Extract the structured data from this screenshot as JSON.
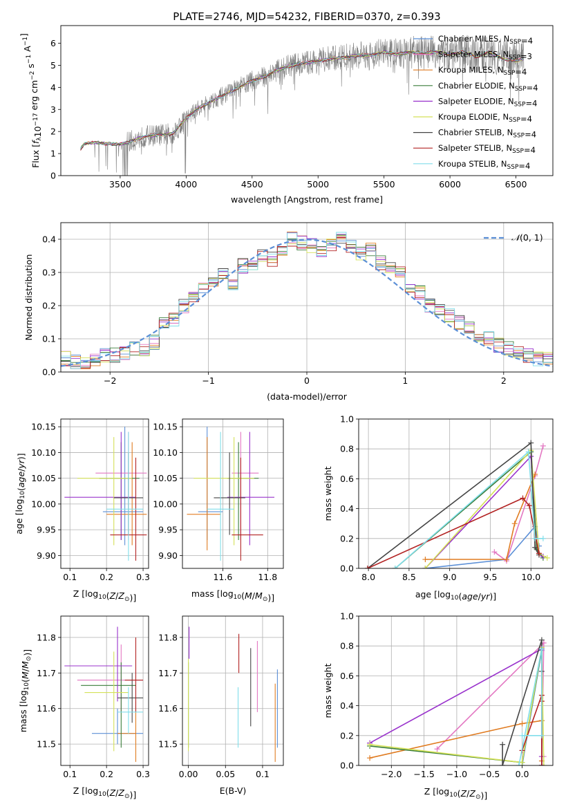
{
  "chart_data": [
    {
      "id": "spectrum",
      "type": "line",
      "title": "PLATE=2746, MJD=54232, FIBERID=0370, z=0.393",
      "xlabel": "wavelength [Angstrom, rest frame]",
      "ylabel": "Flux [f_λ 10^-17 erg cm^-2 s^-1 A^-1]",
      "xlim": [
        3050,
        6780
      ],
      "ylim": [
        0,
        6.8
      ],
      "xticks": [
        3500,
        4000,
        4500,
        5000,
        5500,
        6000,
        6500
      ],
      "yticks": [
        0,
        1,
        2,
        3,
        4,
        5,
        6
      ],
      "grid": false,
      "legend_position": "top-right",
      "series": [
        {
          "name": "Chabrier MILES, N_SSP=4",
          "color": "#5b8fd6"
        },
        {
          "name": "Salpeter MILES, N_SSP=3",
          "color": "#e377c2"
        },
        {
          "name": "Kroupa MILES, N_SSP=4",
          "color": "#e07b20"
        },
        {
          "name": "Chabrier ELODIE, N_SSP=4",
          "color": "#3a7d3a"
        },
        {
          "name": "Salpeter ELODIE, N_SSP=4",
          "color": "#9932cc"
        },
        {
          "name": "Kroupa ELODIE, N_SSP=4",
          "color": "#d4e157"
        },
        {
          "name": "Chabrier STELIB, N_SSP=4",
          "color": "#444444"
        },
        {
          "name": "Salpeter STELIB, N_SSP=4",
          "color": "#b22222"
        },
        {
          "name": "Kroupa STELIB, N_SSP=4",
          "color": "#80deea"
        }
      ],
      "data_color": "#808080",
      "envelope": {
        "x": [
          3200,
          3230,
          3300,
          3400,
          3500,
          3550,
          3600,
          3700,
          3800,
          3900,
          4000,
          4100,
          4200,
          4300,
          4400,
          4500,
          4600,
          4700,
          4800,
          4900,
          5000,
          5100,
          5200,
          5300,
          5400,
          5500,
          5600,
          5700,
          5800,
          5900,
          6000,
          6100,
          6200,
          6300,
          6400,
          6500,
          6560
        ],
        "y": [
          1.2,
          1.45,
          1.5,
          1.45,
          1.42,
          1.5,
          1.6,
          1.8,
          1.85,
          1.9,
          2.6,
          3.1,
          3.4,
          3.7,
          4.0,
          4.3,
          4.5,
          4.8,
          5.0,
          5.1,
          5.2,
          5.3,
          5.35,
          5.45,
          5.45,
          5.6,
          5.5,
          5.6,
          5.55,
          5.6,
          5.5,
          5.6,
          5.4,
          5.6,
          5.3,
          5.2,
          5.3
        ]
      }
    },
    {
      "id": "residuals",
      "type": "line",
      "xlabel": "(data-model)/error",
      "ylabel": "Normed distribution",
      "xlim": [
        -2.5,
        2.5
      ],
      "ylim": [
        0,
        0.45
      ],
      "xticks": [
        -2,
        -1,
        0,
        1,
        2
      ],
      "yticks": [
        0.0,
        0.1,
        0.2,
        0.3,
        0.4
      ],
      "grid": true,
      "legend_position": "top-right",
      "legend": [
        "N(0, 1)"
      ],
      "gaussian_color": "#5b8fd6",
      "bin_width": 0.1,
      "hist_centers": [
        -2.45,
        -2.35,
        -2.25,
        -2.15,
        -2.05,
        -1.95,
        -1.85,
        -1.75,
        -1.65,
        -1.55,
        -1.45,
        -1.35,
        -1.25,
        -1.15,
        -1.05,
        -0.95,
        -0.85,
        -0.75,
        -0.65,
        -0.55,
        -0.45,
        -0.35,
        -0.25,
        -0.15,
        -0.05,
        0.05,
        0.15,
        0.25,
        0.35,
        0.45,
        0.55,
        0.65,
        0.75,
        0.85,
        0.95,
        1.05,
        1.15,
        1.25,
        1.35,
        1.45,
        1.55,
        1.65,
        1.75,
        1.85,
        1.95,
        2.05,
        2.15,
        2.25,
        2.35,
        2.45
      ],
      "hist_base": [
        0.04,
        0.03,
        0.03,
        0.04,
        0.05,
        0.05,
        0.06,
        0.07,
        0.07,
        0.09,
        0.15,
        0.16,
        0.2,
        0.23,
        0.26,
        0.27,
        0.3,
        0.27,
        0.32,
        0.33,
        0.35,
        0.34,
        0.37,
        0.4,
        0.39,
        0.38,
        0.37,
        0.38,
        0.4,
        0.38,
        0.36,
        0.37,
        0.33,
        0.31,
        0.3,
        0.25,
        0.24,
        0.2,
        0.19,
        0.17,
        0.15,
        0.13,
        0.11,
        0.1,
        0.08,
        0.07,
        0.06,
        0.05,
        0.04,
        0.04
      ]
    },
    {
      "id": "age-vs-z",
      "type": "scatter",
      "xlabel": "Z [log10(Z/Z⊙)]",
      "ylabel": "age  [log10(age/yr)]",
      "xlim": [
        0.075,
        0.315
      ],
      "ylim": [
        9.875,
        10.165
      ],
      "xticks": [
        0.1,
        0.2,
        0.3
      ],
      "yticks": [
        9.9,
        9.95,
        10.0,
        10.05,
        10.1,
        10.15
      ],
      "grid": true,
      "points": [
        {
          "c": "#5b8fd6",
          "x": 0.25,
          "xerr": [
            0.19,
            0.3
          ],
          "y": 9.985,
          "yerr": [
            9.92,
            10.15
          ]
        },
        {
          "c": "#e377c2",
          "x": 0.26,
          "xerr": [
            0.17,
            0.31
          ],
          "y": 10.06,
          "yerr": [
            9.93,
            10.14
          ]
        },
        {
          "c": "#e07b20",
          "x": 0.27,
          "xerr": [
            0.2,
            0.31
          ],
          "y": 9.98,
          "yerr": [
            9.92,
            10.12
          ]
        },
        {
          "c": "#3a7d3a",
          "x": 0.24,
          "xerr": [
            0.18,
            0.29
          ],
          "y": 10.05,
          "yerr": [
            9.93,
            10.12
          ]
        },
        {
          "c": "#9932cc",
          "x": 0.24,
          "xerr": [
            0.085,
            0.28
          ],
          "y": 10.013,
          "yerr": [
            9.93,
            10.14
          ]
        },
        {
          "c": "#d4e157",
          "x": 0.22,
          "xerr": [
            0.12,
            0.27
          ],
          "y": 10.05,
          "yerr": [
            9.92,
            10.13
          ]
        },
        {
          "c": "#444444",
          "x": 0.26,
          "xerr": [
            0.22,
            0.3
          ],
          "y": 10.012,
          "yerr": [
            9.94,
            10.1
          ]
        },
        {
          "c": "#b22222",
          "x": 0.28,
          "xerr": [
            0.21,
            0.31
          ],
          "y": 9.94,
          "yerr": [
            9.89,
            10.09
          ]
        },
        {
          "c": "#80deea",
          "x": 0.26,
          "xerr": [
            0.2,
            0.3
          ],
          "y": 9.99,
          "yerr": [
            9.89,
            10.14
          ]
        }
      ]
    },
    {
      "id": "age-vs-mass",
      "type": "scatter",
      "xlabel": "mass [log10(M/M⊙)]",
      "ylabel": "",
      "xlim": [
        11.42,
        11.87
      ],
      "ylim": [
        9.875,
        10.165
      ],
      "xticks": [
        11.6,
        11.8
      ],
      "yticks": [
        9.9,
        9.95,
        10.0,
        10.05,
        10.1,
        10.15
      ],
      "grid": true,
      "points": [
        {
          "c": "#5b8fd6",
          "x": 11.53,
          "xerr": [
            11.49,
            11.6
          ],
          "y": 9.985,
          "yerr": [
            9.93,
            10.15
          ]
        },
        {
          "c": "#e377c2",
          "x": 11.68,
          "xerr": [
            11.64,
            11.76
          ],
          "y": 10.06,
          "yerr": [
            9.93,
            10.14
          ]
        },
        {
          "c": "#e07b20",
          "x": 11.53,
          "xerr": [
            11.44,
            11.59
          ],
          "y": 9.98,
          "yerr": [
            9.91,
            10.13
          ]
        },
        {
          "c": "#3a7d3a",
          "x": 11.67,
          "xerr": [
            11.62,
            11.76
          ],
          "y": 10.05,
          "yerr": [
            9.93,
            10.12
          ]
        },
        {
          "c": "#9932cc",
          "x": 11.72,
          "xerr": [
            11.62,
            11.83
          ],
          "y": 10.013,
          "yerr": [
            9.92,
            10.14
          ]
        },
        {
          "c": "#d4e157",
          "x": 11.65,
          "xerr": [
            11.47,
            11.74
          ],
          "y": 10.05,
          "yerr": [
            9.92,
            10.13
          ]
        },
        {
          "c": "#444444",
          "x": 11.63,
          "xerr": [
            11.56,
            11.7
          ],
          "y": 10.012,
          "yerr": [
            9.94,
            10.1
          ]
        },
        {
          "c": "#b22222",
          "x": 11.68,
          "xerr": [
            11.64,
            11.78
          ],
          "y": 9.94,
          "yerr": [
            9.89,
            10.09
          ]
        },
        {
          "c": "#80deea",
          "x": 11.59,
          "xerr": [
            11.53,
            11.65
          ],
          "y": 9.99,
          "yerr": [
            9.89,
            10.14
          ]
        }
      ]
    },
    {
      "id": "mass-weight-vs-age",
      "type": "line",
      "xlabel": "age  [log10(age/yr)]",
      "ylabel": "mass weight",
      "xlim": [
        7.88,
        10.27
      ],
      "ylim": [
        0.0,
        1.0
      ],
      "xticks": [
        8.0,
        8.5,
        9.0,
        9.5,
        10.0
      ],
      "yticks": [
        0.0,
        0.2,
        0.4,
        0.6,
        0.8,
        1.0
      ],
      "grid": true,
      "series": [
        {
          "c": "#5b8fd6",
          "x": [
            8.7,
            9.7,
            10.05,
            10.1
          ],
          "y": [
            0.0,
            0.06,
            0.28,
            0.15
          ]
        },
        {
          "c": "#e377c2",
          "x": [
            9.55,
            9.7,
            10.05,
            10.15
          ],
          "y": [
            0.11,
            0.05,
            0.62,
            0.82
          ]
        },
        {
          "c": "#e07b20",
          "x": [
            8.7,
            9.7,
            9.8,
            10.05
          ],
          "y": [
            0.06,
            0.06,
            0.3,
            0.63
          ]
        },
        {
          "c": "#3a7d3a",
          "x": [
            8.33,
            10.0,
            10.07,
            10.15
          ],
          "y": [
            0.0,
            0.78,
            0.13,
            0.07
          ]
        },
        {
          "c": "#9932cc",
          "x": [
            8.7,
            10.0,
            10.1,
            10.15
          ],
          "y": [
            0.0,
            0.75,
            0.1,
            0.08
          ]
        },
        {
          "c": "#d4e157",
          "x": [
            8.7,
            10.0,
            10.1,
            10.2
          ],
          "y": [
            0.0,
            0.79,
            0.1,
            0.07
          ]
        },
        {
          "c": "#444444",
          "x": [
            7.99,
            10.0,
            10.05,
            10.1
          ],
          "y": [
            0.0,
            0.84,
            0.14,
            0.09
          ]
        },
        {
          "c": "#b22222",
          "x": [
            7.99,
            9.9,
            9.98,
            10.1
          ],
          "y": [
            0.0,
            0.47,
            0.42,
            0.1
          ]
        },
        {
          "c": "#80deea",
          "x": [
            8.33,
            9.97,
            10.05,
            10.15
          ],
          "y": [
            0.0,
            0.78,
            0.2,
            0.2
          ]
        }
      ]
    },
    {
      "id": "mass-vs-z",
      "type": "scatter",
      "xlabel": "Z [log10(Z/Z⊙)]",
      "ylabel": "mass [log10(M/M⊙)]",
      "xlim": [
        0.075,
        0.315
      ],
      "ylim": [
        11.44,
        11.86
      ],
      "xticks": [
        0.1,
        0.2,
        0.3
      ],
      "yticks": [
        11.5,
        11.6,
        11.7,
        11.8
      ],
      "grid": true,
      "points": [
        {
          "c": "#5b8fd6",
          "x": 0.23,
          "xerr": [
            0.16,
            0.3
          ],
          "y": 11.53,
          "yerr": [
            11.5,
            11.6
          ]
        },
        {
          "c": "#e377c2",
          "x": 0.24,
          "xerr": [
            0.12,
            0.3
          ],
          "y": 11.68,
          "yerr": [
            11.59,
            11.78
          ]
        },
        {
          "c": "#e07b20",
          "x": 0.28,
          "xerr": [
            0.23,
            0.28
          ],
          "y": 11.53,
          "yerr": [
            11.45,
            11.62
          ]
        },
        {
          "c": "#3a7d3a",
          "x": 0.24,
          "xerr": [
            0.13,
            0.28
          ],
          "y": 11.665,
          "yerr": [
            11.49,
            11.73
          ]
        },
        {
          "c": "#9932cc",
          "x": 0.23,
          "xerr": [
            0.085,
            0.27
          ],
          "y": 11.72,
          "yerr": [
            11.62,
            11.83
          ]
        },
        {
          "c": "#d4e157",
          "x": 0.22,
          "xerr": [
            0.14,
            0.26
          ],
          "y": 11.645,
          "yerr": [
            11.48,
            11.76
          ]
        },
        {
          "c": "#444444",
          "x": 0.27,
          "xerr": [
            0.23,
            0.3
          ],
          "y": 11.63,
          "yerr": [
            11.56,
            11.7
          ]
        },
        {
          "c": "#b22222",
          "x": 0.28,
          "xerr": [
            0.25,
            0.3
          ],
          "y": 11.68,
          "yerr": [
            11.59,
            11.8
          ]
        },
        {
          "c": "#80deea",
          "x": 0.26,
          "xerr": [
            0.23,
            0.3
          ],
          "y": 11.59,
          "yerr": [
            11.53,
            11.66
          ]
        }
      ]
    },
    {
      "id": "mass-vs-ebv",
      "type": "scatter",
      "xlabel": "E(B-V)",
      "ylabel": "",
      "xlim": [
        -0.008,
        0.128
      ],
      "ylim": [
        11.44,
        11.86
      ],
      "xticks": [
        0.0,
        0.05,
        0.1
      ],
      "yticks": [
        11.5,
        11.6,
        11.7,
        11.8
      ],
      "grid": true,
      "points": [
        {
          "c": "#5b8fd6",
          "x": 0.12,
          "yerr": [
            11.49,
            11.71
          ]
        },
        {
          "c": "#e377c2",
          "x": 0.093,
          "yerr": [
            11.59,
            11.79
          ]
        },
        {
          "c": "#e07b20",
          "x": 0.117,
          "yerr": [
            11.45,
            11.67
          ]
        },
        {
          "c": "#3a7d3a",
          "x": 0.0,
          "yerr": [
            11.49,
            11.73
          ]
        },
        {
          "c": "#9932cc",
          "x": 0.001,
          "yerr": [
            11.74,
            11.83
          ]
        },
        {
          "c": "#d4e157",
          "x": 0.0,
          "yerr": [
            11.48,
            11.74
          ]
        },
        {
          "c": "#444444",
          "x": 0.084,
          "yerr": [
            11.55,
            11.77
          ]
        },
        {
          "c": "#b22222",
          "x": 0.068,
          "yerr": [
            11.7,
            11.81
          ]
        },
        {
          "c": "#80deea",
          "x": 0.067,
          "yerr": [
            11.49,
            11.66
          ]
        }
      ]
    },
    {
      "id": "mass-weight-vs-z",
      "type": "line",
      "xlabel": "Z [log10(Z/Z⊙)]",
      "ylabel": "mass weight",
      "xlim": [
        -2.5,
        0.47
      ],
      "ylim": [
        0.0,
        1.0
      ],
      "xticks": [
        -2.0,
        -1.5,
        -1.0,
        -0.5,
        0.0
      ],
      "yticks": [
        0.0,
        0.2,
        0.4,
        0.6,
        0.8,
        1.0
      ],
      "grid": true,
      "series": [
        {
          "c": "#5b8fd6",
          "x": [
            0.0,
            0.3,
            0.3,
            0.3
          ],
          "y": [
            0.0,
            0.77,
            0.3,
            0.0
          ]
        },
        {
          "c": "#e377c2",
          "x": [
            -1.3,
            0.33,
            0.3,
            0.33
          ],
          "y": [
            0.11,
            0.82,
            0.06,
            0.06
          ]
        },
        {
          "c": "#e07b20",
          "x": [
            -2.33,
            0.0,
            0.3,
            0.3
          ],
          "y": [
            0.05,
            0.28,
            0.3,
            0.03
          ]
        },
        {
          "c": "#3a7d3a",
          "x": [
            -2.33,
            0.0,
            0.3,
            0.3
          ],
          "y": [
            0.13,
            0.02,
            0.78,
            0.0
          ]
        },
        {
          "c": "#9932cc",
          "x": [
            -2.33,
            0.3,
            0.3,
            0.3
          ],
          "y": [
            0.15,
            0.78,
            0.06,
            0.0
          ]
        },
        {
          "c": "#d4e157",
          "x": [
            -2.33,
            0.0,
            0.3,
            0.33
          ],
          "y": [
            0.14,
            0.02,
            0.79,
            0.0
          ]
        },
        {
          "c": "#444444",
          "x": [
            -0.3,
            -0.3,
            0.3,
            0.3
          ],
          "y": [
            0.14,
            0.0,
            0.84,
            0.63
          ]
        },
        {
          "c": "#b22222",
          "x": [
            0.0,
            0.3,
            0.3,
            0.3
          ],
          "y": [
            0.1,
            0.47,
            0.43,
            0.0
          ]
        },
        {
          "c": "#80deea",
          "x": [
            -0.05,
            0.3,
            0.3,
            0.0
          ],
          "y": [
            0.0,
            0.78,
            0.2,
            0.2
          ]
        }
      ]
    }
  ]
}
